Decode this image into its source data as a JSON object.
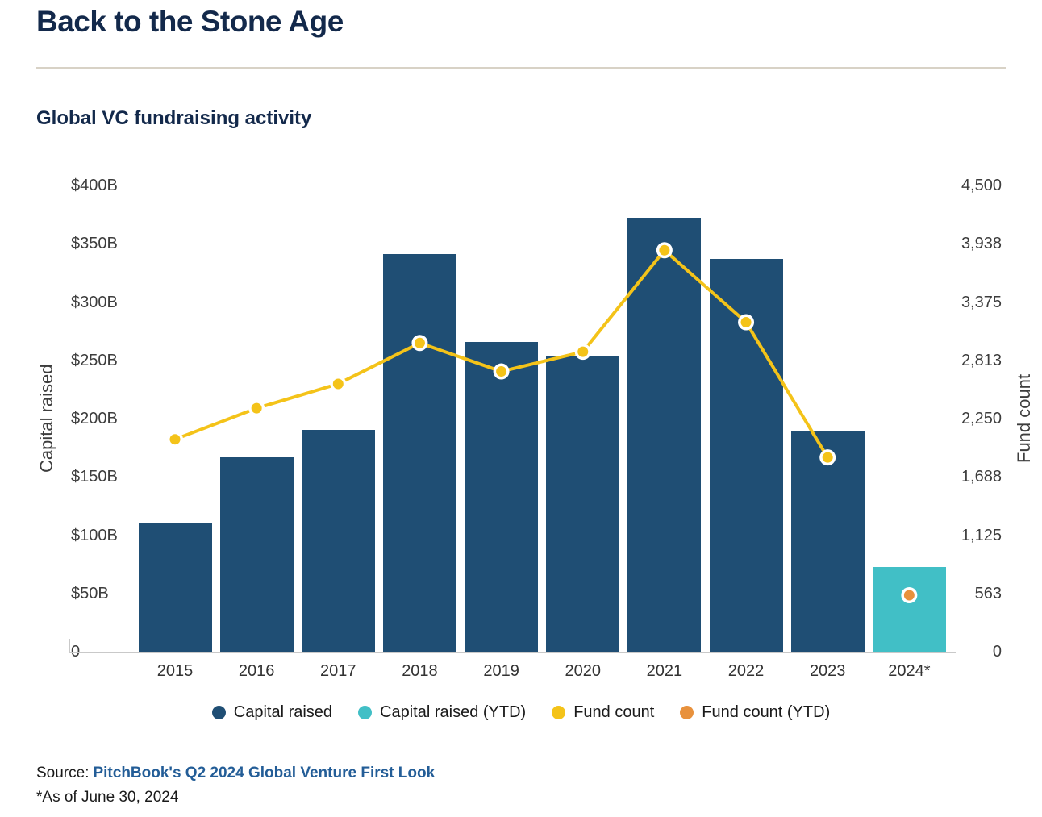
{
  "header": {
    "title": "Back to the Stone Age"
  },
  "chart_data": {
    "type": "bar",
    "subtype": "combo-bar-line-dual-axis",
    "title": "Global VC fundraising activity",
    "categories": [
      "2015",
      "2016",
      "2017",
      "2018",
      "2019",
      "2020",
      "2021",
      "2022",
      "2023",
      "2024*"
    ],
    "series": [
      {
        "name": "Capital raised",
        "type": "bar",
        "axis": "left",
        "color": "#1F4E74",
        "values": [
          111,
          167,
          190,
          341,
          266,
          254,
          372,
          337,
          189,
          null
        ]
      },
      {
        "name": "Capital raised (YTD)",
        "type": "bar",
        "axis": "left",
        "color": "#41BFC6",
        "values": [
          null,
          null,
          null,
          null,
          null,
          null,
          null,
          null,
          null,
          73
        ]
      },
      {
        "name": "Fund count",
        "type": "line",
        "axis": "right",
        "color": "#F4C319",
        "values": [
          2050,
          2350,
          2585,
          2980,
          2705,
          2895,
          3875,
          3180,
          1875,
          null
        ]
      },
      {
        "name": "Fund count (YTD)",
        "type": "point",
        "axis": "right",
        "color": "#E8913C",
        "values": [
          null,
          null,
          null,
          null,
          null,
          null,
          null,
          null,
          null,
          545
        ]
      }
    ],
    "left_axis": {
      "label": "Capital raised",
      "unit": "$B",
      "max": 400,
      "ticks": [
        {
          "value": 400,
          "label": "$400B"
        },
        {
          "value": 350,
          "label": "$350B"
        },
        {
          "value": 300,
          "label": "$300B"
        },
        {
          "value": 250,
          "label": "$250B"
        },
        {
          "value": 200,
          "label": "$200B"
        },
        {
          "value": 150,
          "label": "$150B"
        },
        {
          "value": 100,
          "label": "$100B"
        },
        {
          "value": 50,
          "label": "$50B"
        },
        {
          "value": 0,
          "label": "0"
        }
      ]
    },
    "right_axis": {
      "label": "Fund count",
      "max": 4500,
      "ticks": [
        {
          "value": 4500,
          "label": "4,500"
        },
        {
          "value": 3938,
          "label": "3,938"
        },
        {
          "value": 3375,
          "label": "3,375"
        },
        {
          "value": 2813,
          "label": "2,813"
        },
        {
          "value": 2250,
          "label": "2,250"
        },
        {
          "value": 1688,
          "label": "1,688"
        },
        {
          "value": 1125,
          "label": "1,125"
        },
        {
          "value": 563,
          "label": "563"
        },
        {
          "value": 0,
          "label": "0"
        }
      ]
    },
    "grid": false,
    "legend_position": "bottom"
  },
  "legend": {
    "items": [
      {
        "key": "capital-raised",
        "label": "Capital raised",
        "color": "#1F4E74"
      },
      {
        "key": "capital-raised-ytd",
        "label": "Capital raised (YTD)",
        "color": "#41BFC6"
      },
      {
        "key": "fund-count",
        "label": "Fund count",
        "color": "#F4C319"
      },
      {
        "key": "fund-count-ytd",
        "label": "Fund count (YTD)",
        "color": "#E8913C"
      }
    ]
  },
  "footer": {
    "source_label": "Source:",
    "source_link": "PitchBook's Q2 2024 Global Venture First Look",
    "footnote": "*As of June 30, 2024"
  },
  "colors": {
    "bar_navy": "#1F4E74",
    "bar_teal": "#41BFC6",
    "line_yellow": "#F4C319",
    "point_orange": "#E8913C",
    "title_navy": "#13294B",
    "link_blue": "#235D97",
    "divider_tan": "#D8D2C6",
    "axis_text": "#3D3D3D",
    "axis_line": "#C9C9C9"
  }
}
